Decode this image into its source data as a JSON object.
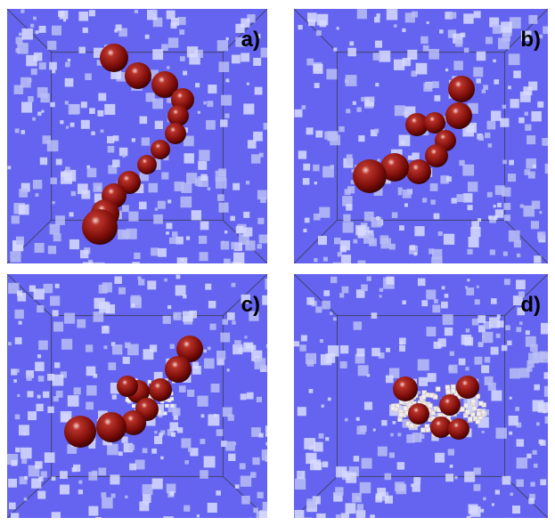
{
  "panels": [
    {
      "label": "a)"
    },
    {
      "label": "b)"
    },
    {
      "label": "c)"
    },
    {
      "label": "d)"
    }
  ]
}
